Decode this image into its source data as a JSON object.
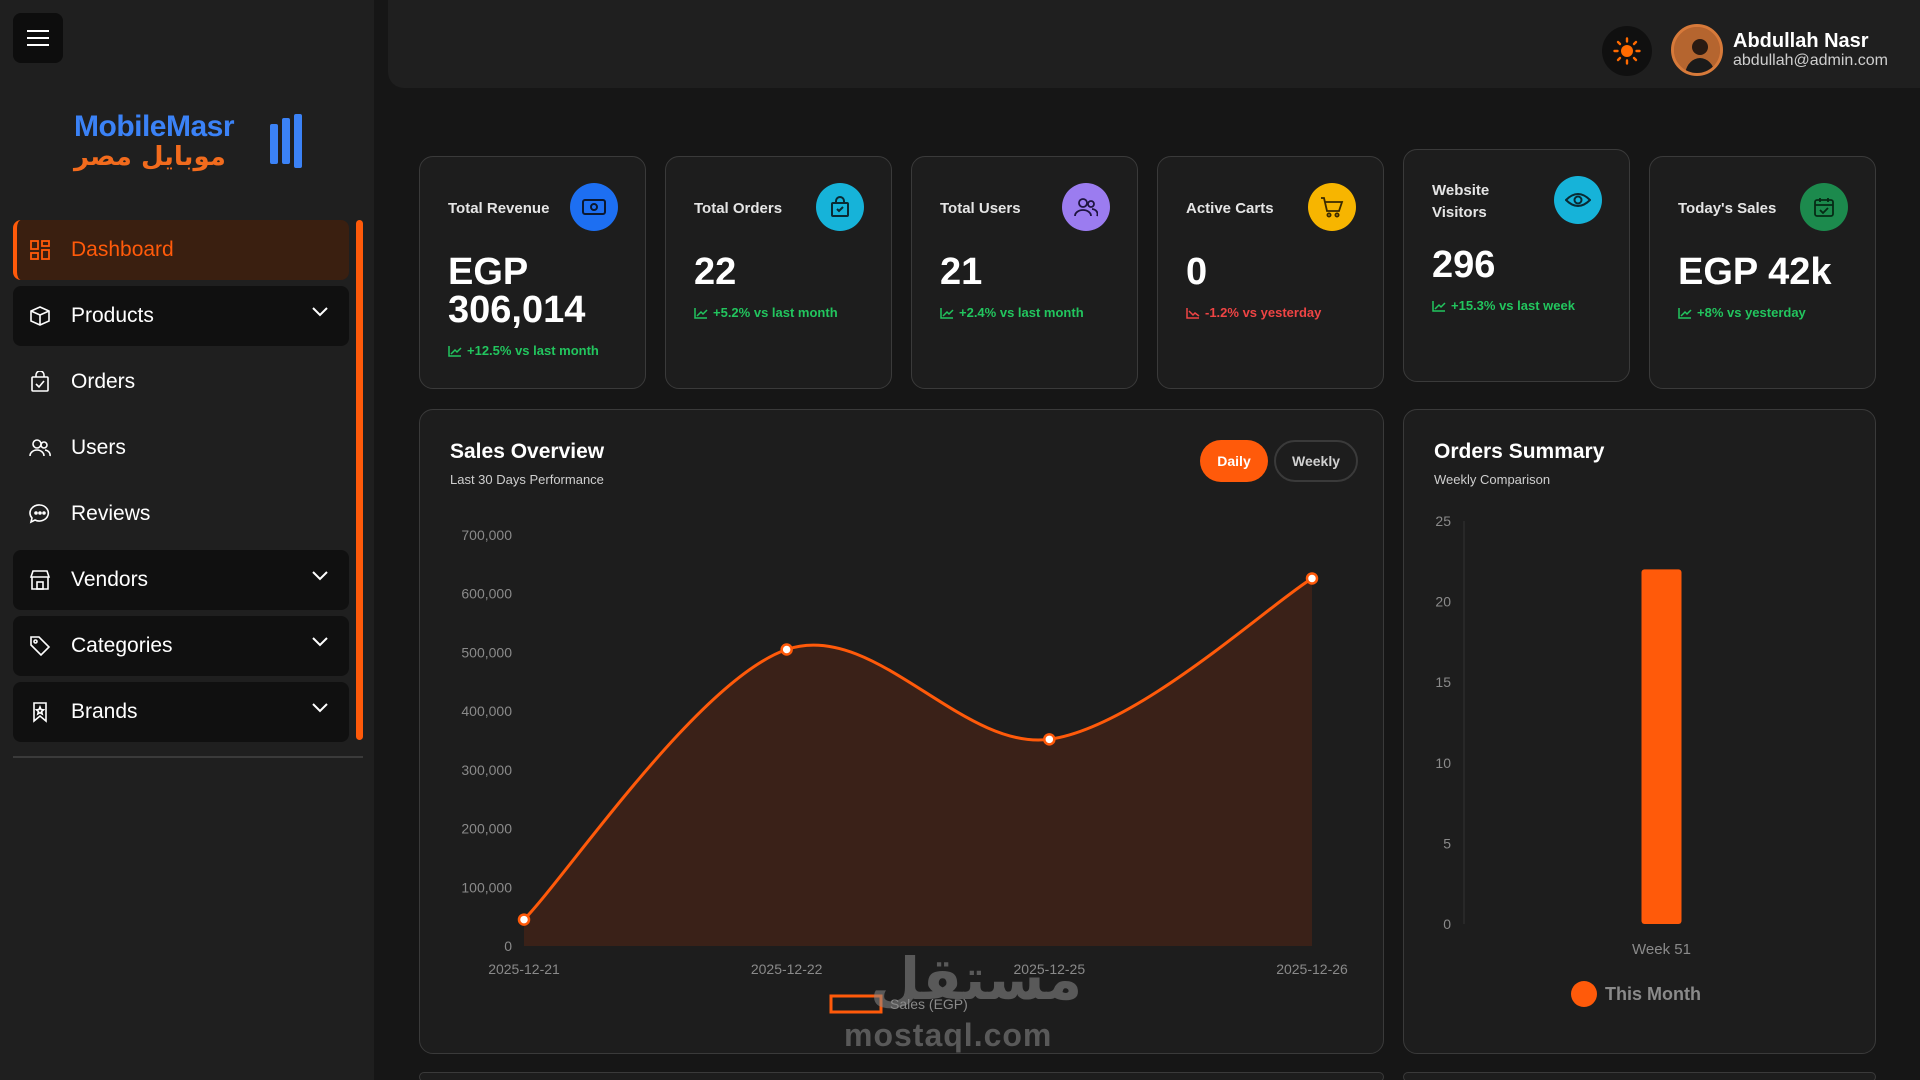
{
  "brand": {
    "name_en": "MobileMasr",
    "name_ar": "موبايل مصر"
  },
  "sidebar": {
    "items": [
      {
        "label": "Dashboard",
        "icon": "grid-icon",
        "active": true
      },
      {
        "label": "Products",
        "icon": "box-icon",
        "dropdown": true
      },
      {
        "label": "Orders",
        "icon": "bag-check-icon"
      },
      {
        "label": "Users",
        "icon": "users-icon"
      },
      {
        "label": "Reviews",
        "icon": "chat-icon"
      },
      {
        "label": "Vendors",
        "icon": "store-icon",
        "dropdown": true
      },
      {
        "label": "Categories",
        "icon": "tag-icon",
        "dropdown": true
      },
      {
        "label": "Brands",
        "icon": "bookmark-icon",
        "dropdown": true
      }
    ]
  },
  "header": {
    "user_name": "Abdullah Nasr",
    "user_email": "abdullah@admin.com",
    "theme_icon": "sun-icon"
  },
  "stats": [
    {
      "title": "Total Revenue",
      "value_line1": "EGP",
      "value_line2": "306,014",
      "trend": "+12.5% vs last month",
      "trend_dir": "up",
      "icon": "money-icon",
      "color": "#1d6ff2"
    },
    {
      "title": "Total Orders",
      "value": "22",
      "trend": "+5.2% vs last month",
      "trend_dir": "up",
      "icon": "shopping-bag-icon",
      "color": "#16b3d9"
    },
    {
      "title": "Total Users",
      "value": "21",
      "trend": "+2.4% vs last month",
      "trend_dir": "up",
      "icon": "users-icon",
      "color": "#9b7cf0"
    },
    {
      "title": "Active Carts",
      "value": "0",
      "trend": "-1.2% vs yesterday",
      "trend_dir": "down",
      "icon": "cart-icon",
      "color": "#f7b500"
    },
    {
      "title_line1": "Website",
      "title_line2": "Visitors",
      "value": "296",
      "trend": "+15.3% vs last week",
      "trend_dir": "up",
      "icon": "eye-icon",
      "color": "#16b3d9"
    },
    {
      "title": "Today's Sales",
      "value": "EGP 42k",
      "trend": "+8% vs yesterday",
      "trend_dir": "up",
      "icon": "calendar-check-icon",
      "color": "#1c8a4d"
    }
  ],
  "sales_overview": {
    "title": "Sales Overview",
    "subtitle": "Last 30 Days Performance",
    "toggle_daily": "Daily",
    "toggle_weekly": "Weekly",
    "legend": "Sales (EGP)"
  },
  "orders_summary": {
    "title": "Orders Summary",
    "subtitle": "Weekly Comparison",
    "legend": "This Month"
  },
  "chart_data": [
    {
      "type": "area",
      "x": [
        "2025-12-21",
        "2025-12-22",
        "2025-12-25",
        "2025-12-26"
      ],
      "series": [
        {
          "name": "Sales (EGP)",
          "values": [
            45000,
            505000,
            352000,
            626000
          ],
          "color": "#ff5a0a"
        }
      ],
      "ylim": [
        0,
        700000
      ],
      "yticks": [
        "0",
        "100,000",
        "200,000",
        "300,000",
        "400,000",
        "500,000",
        "600,000",
        "700,000"
      ],
      "xlabel": "",
      "ylabel": "",
      "legend": "bottom"
    },
    {
      "type": "bar",
      "categories": [
        "Week 51"
      ],
      "series": [
        {
          "name": "This Month",
          "values": [
            22
          ],
          "color": "#ff5a0a"
        }
      ],
      "ylim": [
        0,
        25
      ],
      "yticks": [
        "0",
        "5",
        "10",
        "15",
        "20",
        "25"
      ],
      "xlabel": "",
      "ylabel": "",
      "legend": "bottom"
    }
  ],
  "watermark": {
    "ar": "مستقل",
    "en": "mostaql.com"
  }
}
